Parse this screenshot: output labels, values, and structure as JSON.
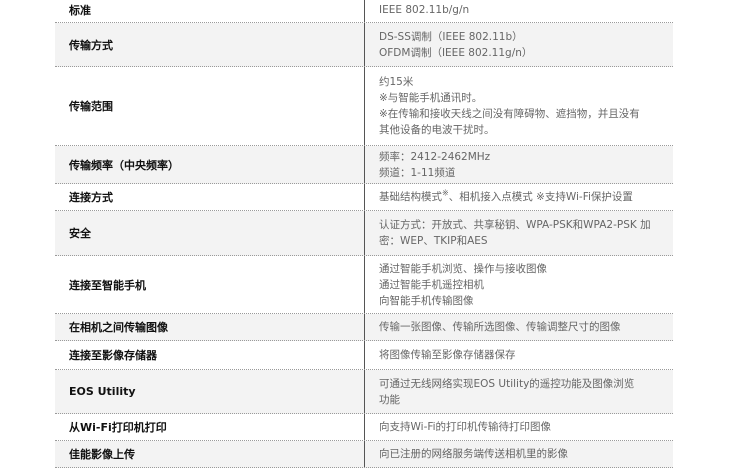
{
  "rows": [
    {
      "label": "标准",
      "lines": [
        "IEEE 802.11b/g/n"
      ]
    },
    {
      "label": "传输方式",
      "lines": [
        "DS-SS调制（IEEE 802.11b）",
        "OFDM调制（IEEE 802.11g/n）"
      ]
    },
    {
      "label": "传输范围",
      "lines": [
        "约15米",
        "※与智能手机通讯时。",
        "※在传输和接收天线之间没有障碍物、遮挡物，并且没有",
        "其他设备的电波干扰时。"
      ]
    },
    {
      "label": "传输频率（中央频率）",
      "lines": [
        "频率：2412-2462MHz",
        "频道：1-11频道"
      ]
    },
    {
      "label": "连接方式",
      "lines": [
        "基础结构模式",
        "※",
        "、相机接入点模式 ※支持Wi-Fi保护设置"
      ]
    },
    {
      "label": "安全",
      "lines": [
        "认证方式：开放式、共享秘钥、WPA-PSK和WPA2-PSK 加",
        "密：WEP、TKIP和AES"
      ]
    },
    {
      "label": "连接至智能手机",
      "lines": [
        "通过智能手机浏览、操作与接收图像",
        "通过智能手机遥控相机",
        "向智能手机传输图像"
      ]
    },
    {
      "label": "在相机之间传输图像",
      "lines": [
        "传输一张图像、传输所选图像、传输调整尺寸的图像"
      ]
    },
    {
      "label": "连接至影像存储器",
      "lines": [
        "将图像传输至影像存储器保存"
      ]
    },
    {
      "label": "EOS Utility",
      "lines": [
        "可通过无线网络实现EOS Utility的遥控功能及图像浏览",
        "功能"
      ]
    },
    {
      "label": "从Wi-Fi打印机打印",
      "lines": [
        "向支持Wi-Fi的打印机传输待打印图像"
      ]
    },
    {
      "label": "佳能影像上传",
      "lines": [
        "向已注册的网络服务端传送相机里的影像"
      ]
    }
  ]
}
